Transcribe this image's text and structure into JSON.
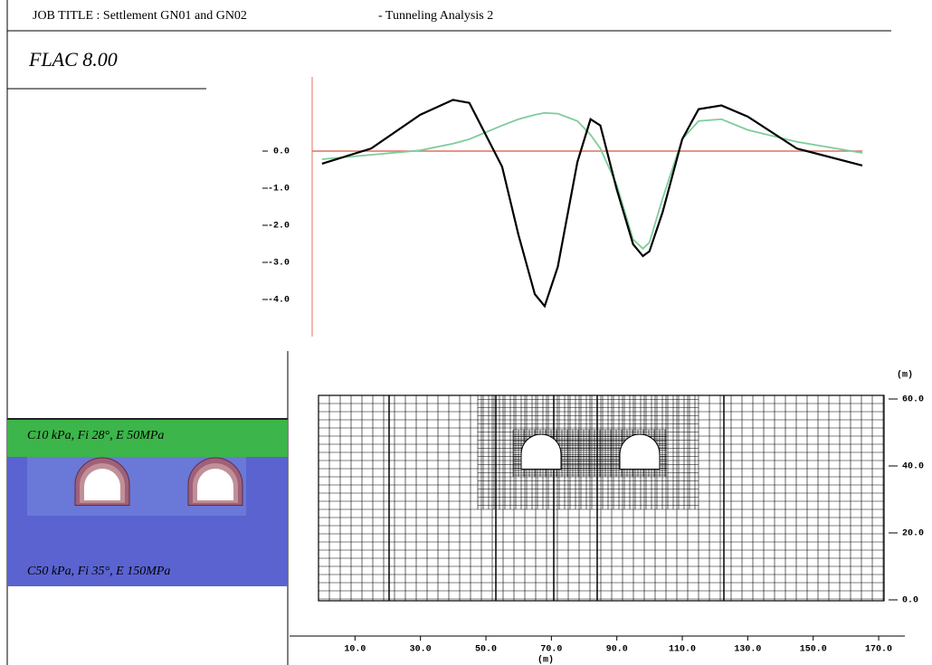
{
  "header": {
    "job_title": "JOB TITLE : Settlement GN01 and GN02",
    "analysis": "- Tunneling Analysis 2",
    "program": "FLAC 8.00"
  },
  "model_panel": {
    "upper_layer": "C10 kPa, Fi 28°, E 50MPa",
    "lower_layer": "C50 kPa, Fi 35°, E 150MPa"
  },
  "chart_data": [
    {
      "type": "line",
      "x": [
        0,
        15,
        30,
        40,
        45,
        55,
        60,
        65,
        68,
        72,
        78,
        82,
        85,
        90,
        95,
        98,
        100,
        104,
        110,
        115,
        122,
        130,
        145,
        165
      ],
      "xlim": [
        -3,
        165
      ],
      "ylim": [
        -5,
        2
      ],
      "yticks": [
        {
          "value": 0,
          "label": "0.0"
        },
        {
          "value": -1,
          "label": "-1.0"
        },
        {
          "value": -2,
          "label": "-2.0"
        },
        {
          "value": -3,
          "label": "-3.0"
        },
        {
          "value": -4,
          "label": "-4.0"
        }
      ],
      "axis_color": "#e07060",
      "series": [
        {
          "color": "#000000",
          "values": [
            -0.34,
            0.07,
            0.98,
            1.38,
            1.3,
            -0.42,
            -2.26,
            -3.86,
            -4.18,
            -3.12,
            -0.29,
            0.86,
            0.69,
            -1.03,
            -2.51,
            -2.83,
            -2.7,
            -1.65,
            0.32,
            1.13,
            1.23,
            0.93,
            0.07,
            -0.39
          ]
        },
        {
          "color": "#7fcc9c",
          "values": [
            -0.22,
            -0.1,
            0.02,
            0.2,
            0.32,
            0.69,
            0.86,
            0.98,
            1.03,
            1.01,
            0.81,
            0.44,
            0.07,
            -0.91,
            -2.38,
            -2.63,
            -2.46,
            -1.28,
            0.32,
            0.81,
            0.86,
            0.57,
            0.25,
            -0.05
          ]
        }
      ]
    },
    {
      "type": "mesh",
      "xlabel": "(m)",
      "ylabel": "(m)",
      "xlim": [
        -10,
        178
      ],
      "ylim": [
        0,
        60
      ],
      "xticks": [
        {
          "value": 10,
          "label": "10.0"
        },
        {
          "value": 30,
          "label": "30.0"
        },
        {
          "value": 50,
          "label": "50.0"
        },
        {
          "value": 70,
          "label": "70.0"
        },
        {
          "value": 90,
          "label": "90.0"
        },
        {
          "value": 110,
          "label": "110.0"
        },
        {
          "value": 130,
          "label": "130.0"
        },
        {
          "value": 150,
          "label": "150.0"
        },
        {
          "value": 170,
          "label": "170.0"
        }
      ],
      "yticks": [
        {
          "value": 0,
          "label": "0.0"
        },
        {
          "value": 20,
          "label": "20.0"
        },
        {
          "value": 40,
          "label": "40.0"
        },
        {
          "value": 60,
          "label": "60.0"
        }
      ]
    }
  ]
}
